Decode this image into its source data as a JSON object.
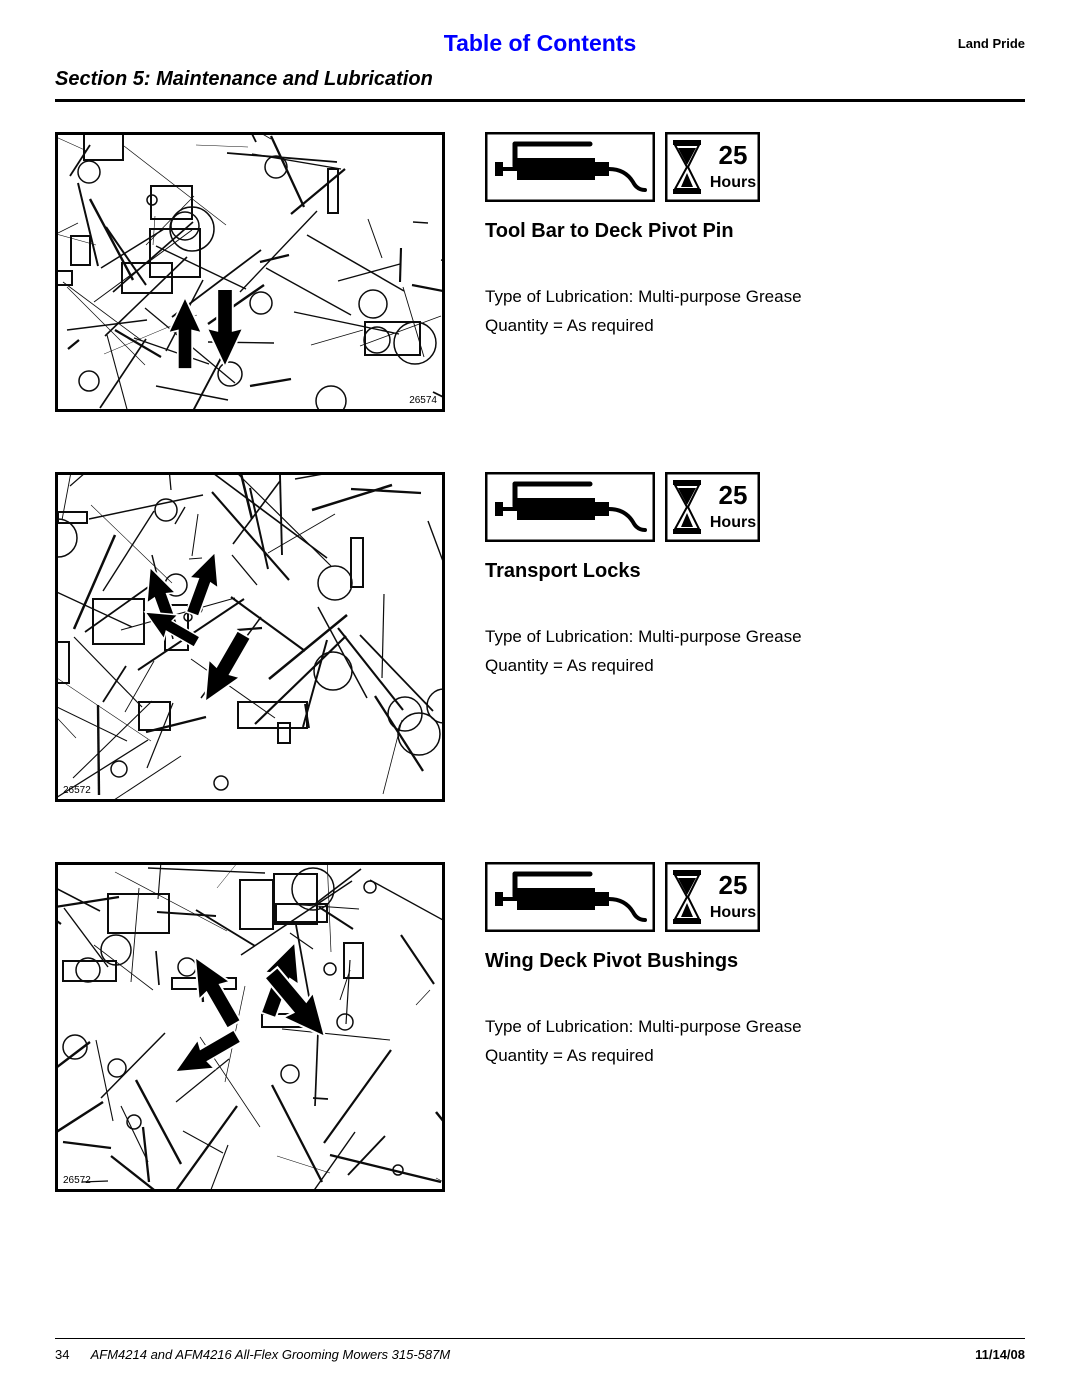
{
  "header": {
    "toc": "Table of Contents",
    "brand": "Land Pride",
    "section": "Section 5:  Maintenance and Lubrication"
  },
  "interval": {
    "value": "25",
    "unit": "Hours"
  },
  "items": [
    {
      "title": "Tool Bar to Deck Pivot Pin",
      "lube_type": "Type of Lubrication: Multi-purpose Grease",
      "qty": "Quantity = As required",
      "fig_num": "26574",
      "fig_w": 390,
      "fig_h": 280,
      "fig_num_pos": "br"
    },
    {
      "title": "Transport Locks",
      "lube_type": "Type of Lubrication: Multi-purpose Grease",
      "qty": "Quantity = As required",
      "fig_num": "26572",
      "fig_w": 390,
      "fig_h": 330,
      "fig_num_pos": "bl"
    },
    {
      "title": "Wing Deck Pivot Bushings",
      "lube_type": "Type of Lubrication: Multi-purpose Grease",
      "qty": "Quantity = As required",
      "fig_num": "26572",
      "fig_w": 390,
      "fig_h": 330,
      "fig_num_pos": "bl"
    }
  ],
  "footer": {
    "page": "34",
    "doc": "AFM4214 and AFM4216 All-Flex Grooming Mowers   315-587M",
    "date": "11/14/08"
  },
  "colors": {
    "link": "#0000ff",
    "text": "#000000",
    "rule": "#000000"
  }
}
